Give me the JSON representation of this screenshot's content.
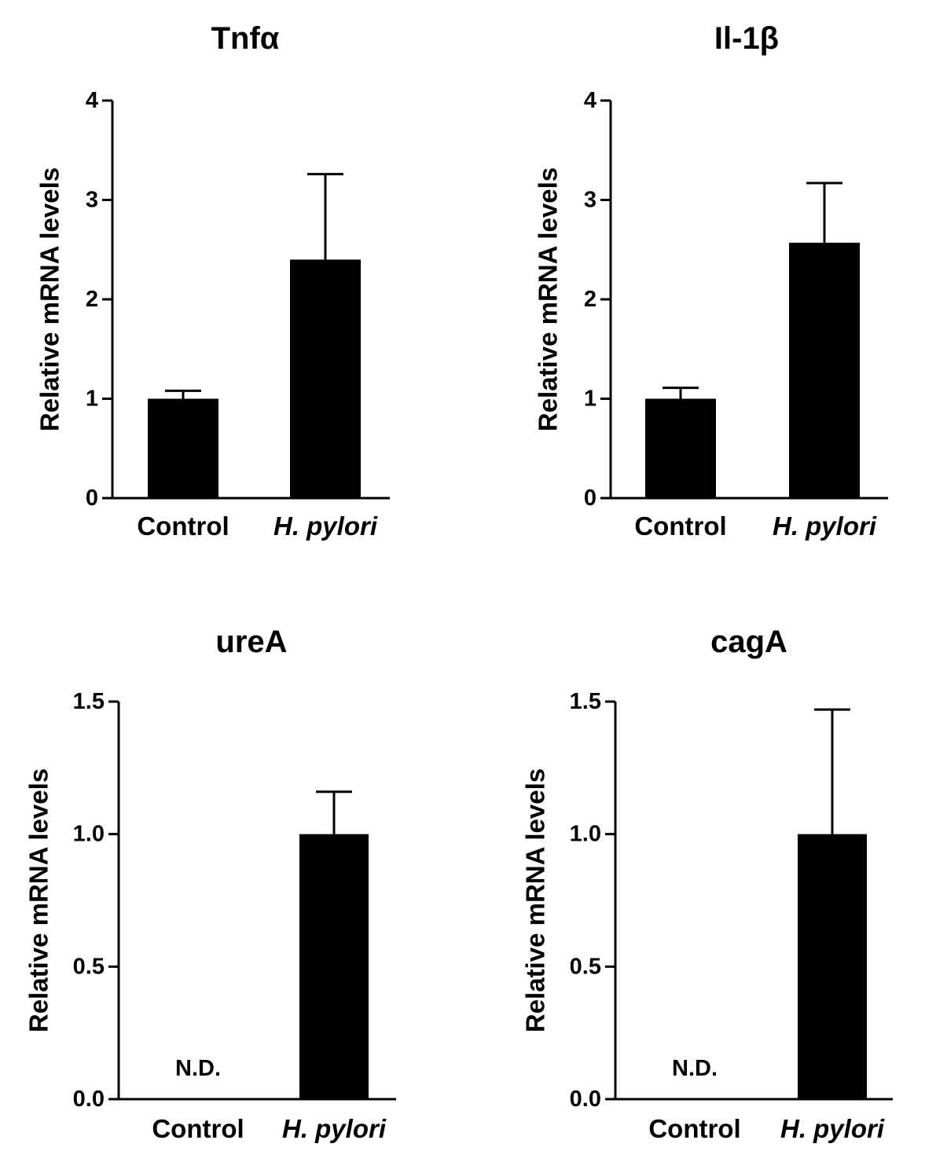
{
  "colors": {
    "bar": "#000000",
    "axis": "#000000",
    "background": "#ffffff"
  },
  "chart_data": [
    {
      "type": "bar",
      "title": "Tnfα",
      "ylabel": "Relative mRNA levels",
      "xlabel": "",
      "ylim": [
        0,
        4
      ],
      "yticks": [
        0,
        1,
        2,
        3,
        4
      ],
      "ytick_labels": [
        "0",
        "1",
        "2",
        "3",
        "4"
      ],
      "categories": [
        "Control",
        "H. pylori"
      ],
      "category_italic": [
        false,
        true
      ],
      "values": [
        1.0,
        2.4
      ],
      "errors": [
        0.08,
        0.86
      ],
      "annotations": [
        null,
        null
      ]
    },
    {
      "type": "bar",
      "title": "Il-1β",
      "ylabel": "Relative mRNA levels",
      "xlabel": "",
      "ylim": [
        0,
        4
      ],
      "yticks": [
        0,
        1,
        2,
        3,
        4
      ],
      "ytick_labels": [
        "0",
        "1",
        "2",
        "3",
        "4"
      ],
      "categories": [
        "Control",
        "H. pylori"
      ],
      "category_italic": [
        false,
        true
      ],
      "values": [
        1.0,
        2.57
      ],
      "errors": [
        0.11,
        0.6
      ],
      "annotations": [
        null,
        null
      ]
    },
    {
      "type": "bar",
      "title": "ureA",
      "ylabel": "Relative mRNA levels",
      "xlabel": "",
      "ylim": [
        0,
        1.5
      ],
      "yticks": [
        0,
        0.5,
        1.0,
        1.5
      ],
      "ytick_labels": [
        "0.0",
        "0.5",
        "1.0",
        "1.5"
      ],
      "categories": [
        "Control",
        "H. pylori"
      ],
      "category_italic": [
        false,
        true
      ],
      "values": [
        0,
        1.0
      ],
      "errors": [
        0,
        0.16
      ],
      "annotations": [
        "N.D.",
        null
      ]
    },
    {
      "type": "bar",
      "title": "cagA",
      "ylabel": "Relative mRNA levels",
      "xlabel": "",
      "ylim": [
        0,
        1.5
      ],
      "yticks": [
        0,
        0.5,
        1.0,
        1.5
      ],
      "ytick_labels": [
        "0.0",
        "0.5",
        "1.0",
        "1.5"
      ],
      "categories": [
        "Control",
        "H. pylori"
      ],
      "category_italic": [
        false,
        true
      ],
      "values": [
        0,
        1.0
      ],
      "errors": [
        0,
        0.47
      ],
      "annotations": [
        "N.D.",
        null
      ]
    }
  ]
}
